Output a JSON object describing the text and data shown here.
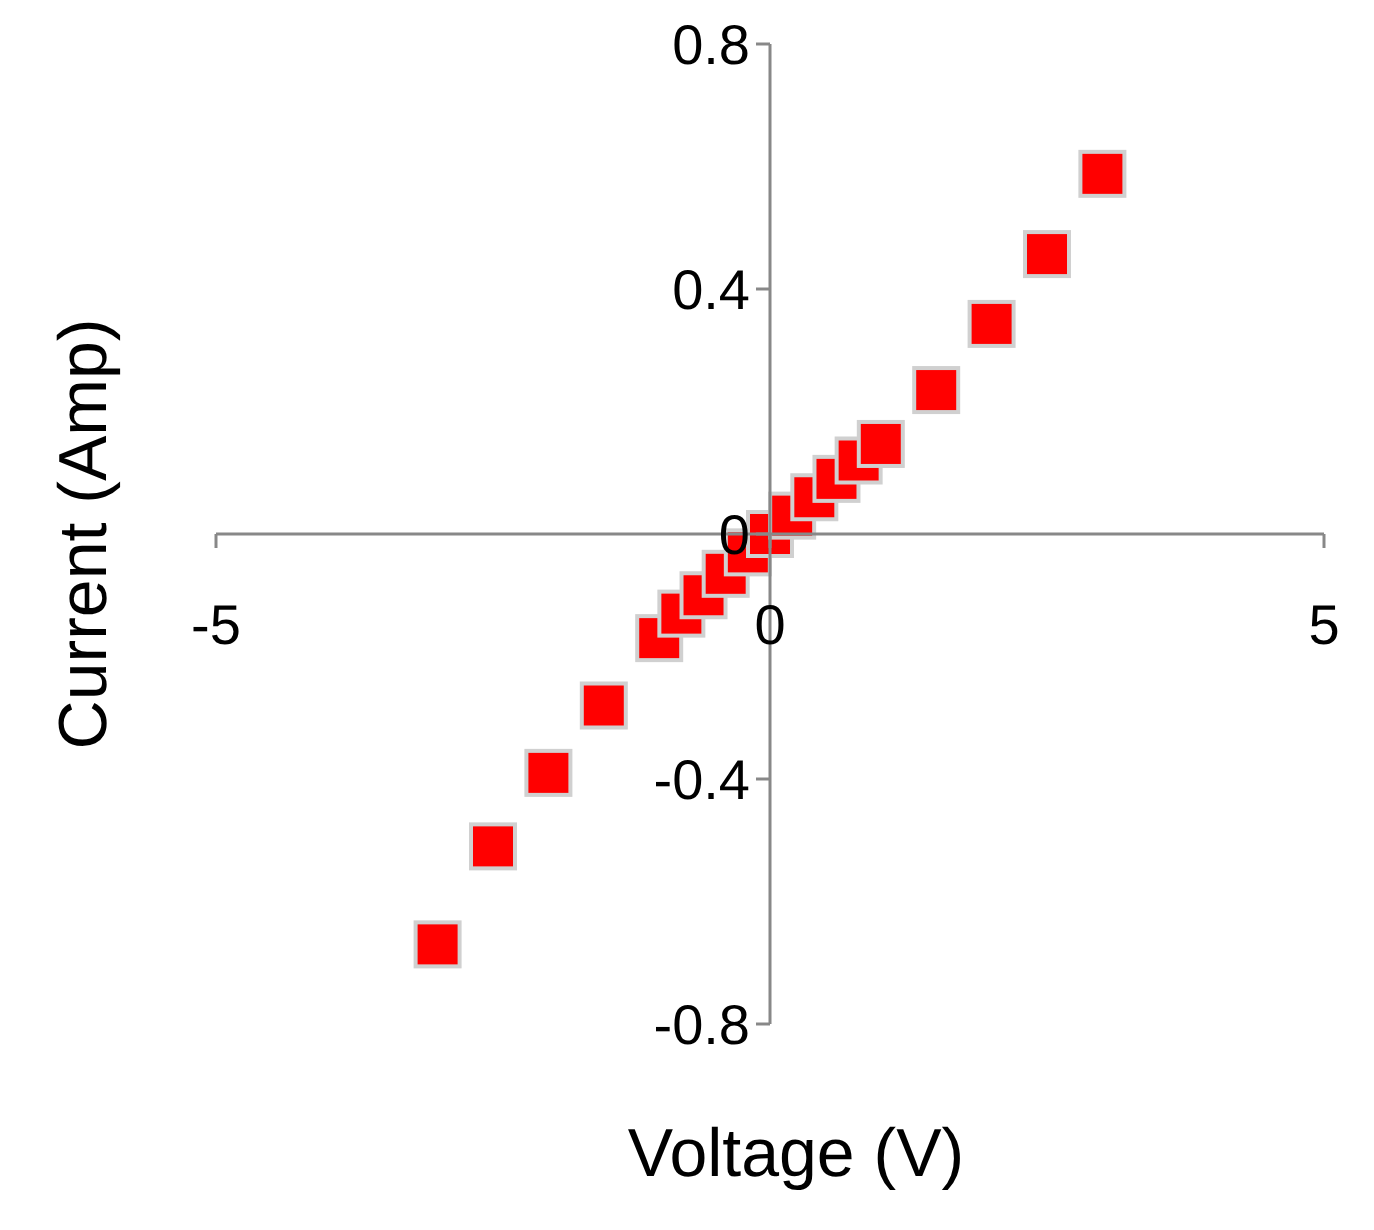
{
  "chart_data": {
    "type": "scatter",
    "xlabel": "Voltage (V)",
    "ylabel": "Current (Amp)",
    "x": [
      -3,
      -2.5,
      -2,
      -1.5,
      -1,
      -0.8,
      -0.6,
      -0.4,
      -0.2,
      0,
      0.2,
      0.4,
      0.6,
      0.8,
      1,
      1.5,
      2,
      2.5,
      3
    ],
    "series": [
      {
        "color": "#ff0000",
        "values": [
          -0.67,
          -0.51,
          -0.39,
          -0.28,
          -0.17,
          -0.13,
          -0.1,
          -0.065,
          -0.03,
          0,
          0.03,
          0.06,
          0.09,
          0.12,
          0.147,
          0.235,
          0.343,
          0.457,
          0.588
        ]
      }
    ],
    "xlim": [
      -5,
      5
    ],
    "ylim": [
      -0.8,
      0.8
    ],
    "xticks": [
      -5,
      0,
      5
    ],
    "yticks": [
      -0.8,
      -0.4,
      0,
      0.4,
      0.8
    ],
    "marker": "square",
    "grid": false,
    "legend": false
  }
}
